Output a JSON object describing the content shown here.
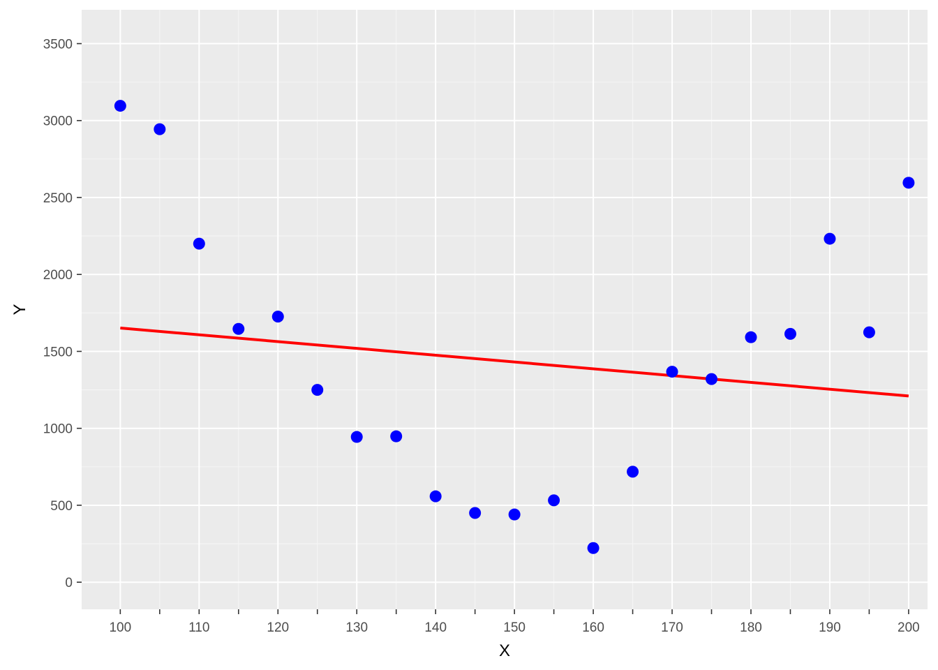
{
  "chart_data": {
    "type": "scatter",
    "xlabel": "X",
    "ylabel": "Y",
    "xlim": [
      95.1,
      202.4
    ],
    "ylim": [
      -176,
      3720
    ],
    "x_ticks": [
      100,
      105,
      110,
      115,
      120,
      125,
      130,
      135,
      140,
      145,
      150,
      155,
      160,
      165,
      170,
      175,
      180,
      185,
      190,
      195,
      200
    ],
    "x_tick_labels": [
      "100",
      "110",
      "120",
      "130",
      "140",
      "150",
      "160",
      "170",
      "180",
      "190",
      "200"
    ],
    "y_ticks": [
      0,
      500,
      1000,
      1500,
      2000,
      2500,
      3000,
      3500
    ],
    "y_tick_labels": [
      "0",
      "500",
      "1000",
      "1500",
      "2000",
      "2500",
      "3000",
      "3500"
    ],
    "grid": true,
    "points": {
      "x": [
        100,
        105,
        110,
        115,
        120,
        125,
        130,
        135,
        140,
        145,
        150,
        155,
        160,
        165,
        170,
        175,
        180,
        185,
        190,
        195,
        200
      ],
      "y": [
        3096,
        2944,
        2200,
        1646,
        1726,
        1250,
        944,
        948,
        558,
        450,
        440,
        532,
        222,
        718,
        1368,
        1320,
        1592,
        1614,
        2232,
        1624,
        2596
      ],
      "color": "#0000ff"
    },
    "trend_line": {
      "x": [
        100,
        200
      ],
      "y": [
        1652,
        1210
      ],
      "color": "#ff0000"
    },
    "colors": {
      "panel": "#ebebeb",
      "grid_major": "#ffffff",
      "grid_minor": "#f5f5f5",
      "tick": "#333333"
    }
  }
}
